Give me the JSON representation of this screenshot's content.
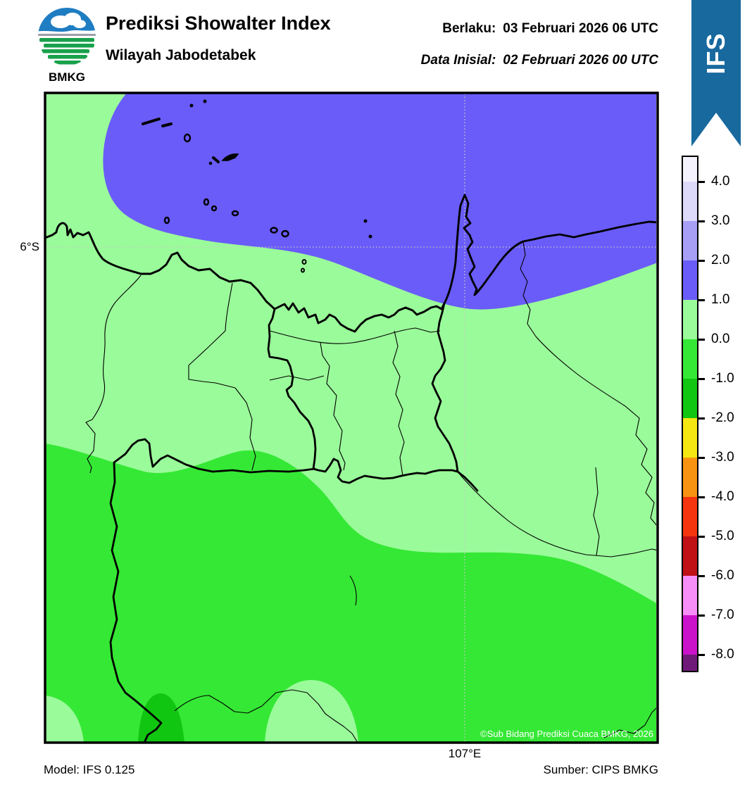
{
  "header": {
    "logo_text": "BMKG",
    "title": "Prediksi Showalter Index",
    "subtitle": "Wilayah Jabodetabek",
    "valid_label": "Berlaku:",
    "valid_value": "03 Februari 2026 06 UTC",
    "init_label": "Data Inisial:",
    "init_value": "02 Februari 2026 00 UTC",
    "ribbon_label": "IFS",
    "ribbon_color": "#17699e"
  },
  "map": {
    "lat_tick": "6°S",
    "lon_tick": "107°E",
    "copyright": "©Sub Bidang Prediksi Cuaca BMKG, 2026",
    "colors": {
      "land_si_0_1": "#9afb9a",
      "sea_si_1_2": "#6a5cf8",
      "south_si_m1_0": "#35e835",
      "patch_si_m2_m1": "#11c611",
      "gridline": "#c9c9c9",
      "outline": "#000000"
    }
  },
  "colorbar": {
    "tick_labels": [
      "4.0",
      "3.0",
      "2.0",
      "1.0",
      "0.0",
      "-1.0",
      "-2.0",
      "-3.0",
      "-4.0",
      "-5.0",
      "-6.0",
      "-7.0",
      "-8.0"
    ],
    "segment_colors_top_to_bottom": [
      "#f4f3fd",
      "#dcdaf8",
      "#a79ff6",
      "#6a5cf8",
      "#9afb9a",
      "#35e835",
      "#11c611",
      "#f5e812",
      "#f89311",
      "#f4350e",
      "#c01117",
      "#f78df7",
      "#cb12cb",
      "#6f1a78"
    ]
  },
  "footer": {
    "model": "Model: IFS 0.125",
    "source": "Sumber: CIPS BMKG"
  },
  "chart_data": {
    "type": "heatmap",
    "title": "Prediksi Showalter Index",
    "region": "Wilayah Jabodetabek",
    "valid_time": "03 Februari 2026 06 UTC",
    "initial_time": "02 Februari 2026 00 UTC",
    "model": "IFS 0.125",
    "source": "CIPS BMKG",
    "colorbar_ticks": [
      4.0,
      3.0,
      2.0,
      1.0,
      0.0,
      -1.0,
      -2.0,
      -3.0,
      -4.0,
      -5.0,
      -6.0,
      -7.0,
      -8.0
    ],
    "colorbar_colors_top_to_bottom": [
      "#f4f3fd",
      "#dcdaf8",
      "#a79ff6",
      "#6a5cf8",
      "#9afb9a",
      "#35e835",
      "#11c611",
      "#f5e812",
      "#f89311",
      "#f4350e",
      "#c01117",
      "#f78df7",
      "#cb12cb",
      "#6f1a78"
    ],
    "graticule": {
      "latitude_line": "6°S",
      "longitude_line": "107°E"
    },
    "depicted_values": [
      {
        "area": "Java Sea / northern coastal strip (top of map)",
        "showalter_index_range": [
          1.0,
          2.0
        ]
      },
      {
        "area": "Jakarta and central Jabodetabek land area",
        "showalter_index_range": [
          0.0,
          1.0
        ]
      },
      {
        "area": "Southern half of map (Bogor region)",
        "showalter_index_range": [
          -1.0,
          0.0
        ]
      },
      {
        "area": "Small dome-shaped patch at far south-west",
        "showalter_index_range": [
          -2.0,
          -1.0
        ]
      },
      {
        "area": "Small pockets along bottom edge (SW corner and bottom centre)",
        "showalter_index_range": [
          0.0,
          1.0
        ]
      }
    ]
  }
}
